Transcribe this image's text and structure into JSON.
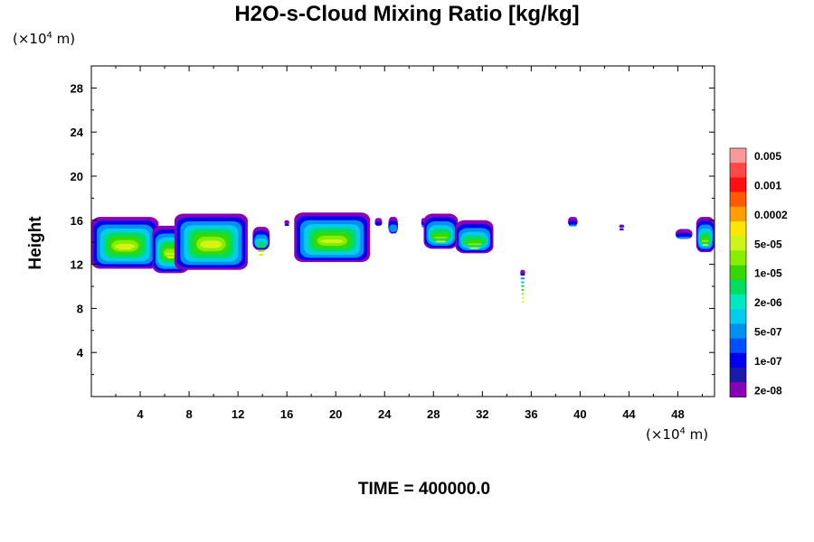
{
  "chart_data": {
    "type": "heatmap",
    "title": "H2O-s-Cloud Mixing Ratio [kg/kg]",
    "ylabel": "Height",
    "xlabel": "",
    "x_unit": {
      "prefix": "(×10",
      "exp": "4",
      "suffix": " m)"
    },
    "y_unit": {
      "prefix": "(×10",
      "exp": "4",
      "suffix": " m)"
    },
    "xlim": [
      0,
      51
    ],
    "ylim": [
      0,
      30
    ],
    "x_ticks": [
      4,
      8,
      12,
      16,
      20,
      24,
      28,
      32,
      36,
      40,
      44,
      48
    ],
    "x_tick_labels": [
      "4",
      "8",
      "12",
      "16",
      "20",
      "24",
      "28",
      "32",
      "36",
      "40",
      "44",
      "48"
    ],
    "y_ticks": [
      4,
      8,
      12,
      16,
      20,
      24,
      28
    ],
    "y_tick_labels": [
      "4",
      "8",
      "12",
      "16",
      "20",
      "24",
      "28"
    ],
    "colorbar": {
      "labels": [
        "0.005",
        "0.001",
        "0.0002",
        "5e-05",
        "1e-05",
        "2e-06",
        "5e-07",
        "1e-07",
        "2e-08"
      ],
      "colors": [
        "#f99a9a",
        "#ff4848",
        "#ff1010",
        "#ff5a00",
        "#ff9e00",
        "#ffe600",
        "#cdf51a",
        "#88ee00",
        "#35d800",
        "#00dd60",
        "#00e8c0",
        "#00ccee",
        "#0090f0",
        "#0050ff",
        "#0000ee",
        "#1a1aa8",
        "#8800b8"
      ]
    },
    "clouds": [
      {
        "x": [
          0,
          5.5
        ],
        "top": 16.3,
        "bottom": 11.6,
        "max_level": 0.0002
      },
      {
        "x": [
          5.0,
          8.0
        ],
        "top": 15.5,
        "bottom": 11.2,
        "max_level": 0.0002
      },
      {
        "x": [
          6.8,
          12.8
        ],
        "top": 16.6,
        "bottom": 11.5,
        "max_level": 0.0002
      },
      {
        "x": [
          13.2,
          14.6
        ],
        "top": 15.4,
        "bottom": 13.3,
        "max_level": 5e-05
      },
      {
        "x": [
          15.8,
          16.2
        ],
        "top": 16.0,
        "bottom": 15.6,
        "max_level": 2e-08
      },
      {
        "x": [
          16.6,
          22.8
        ],
        "top": 16.7,
        "bottom": 12.2,
        "max_level": 5e-05
      },
      {
        "x": [
          23.2,
          23.8
        ],
        "top": 16.2,
        "bottom": 15.5,
        "max_level": 2e-08
      },
      {
        "x": [
          24.3,
          25.1
        ],
        "top": 16.3,
        "bottom": 14.8,
        "max_level": 1e-07
      },
      {
        "x": [
          27.0,
          27.4
        ],
        "top": 16.2,
        "bottom": 15.5,
        "max_level": 1e-07
      },
      {
        "x": [
          27.2,
          30.0
        ],
        "top": 16.6,
        "bottom": 13.4,
        "max_level": 5e-05
      },
      {
        "x": [
          29.8,
          32.9
        ],
        "top": 16.0,
        "bottom": 13.0,
        "max_level": 5e-05
      },
      {
        "x": [
          35.1,
          35.5
        ],
        "top": 11.5,
        "bottom": 11.0,
        "max_level": 0.0002
      },
      {
        "x": [
          39.0,
          39.8
        ],
        "top": 16.3,
        "bottom": 15.5,
        "max_level": 1e-07
      },
      {
        "x": [
          43.2,
          43.6
        ],
        "top": 15.6,
        "bottom": 15.3,
        "max_level": 2e-08
      },
      {
        "x": [
          47.8,
          49.2
        ],
        "top": 15.2,
        "bottom": 14.3,
        "max_level": 1e-07
      },
      {
        "x": [
          49.5,
          51.0
        ],
        "top": 16.3,
        "bottom": 13.1,
        "max_level": 5e-05
      }
    ]
  },
  "time_label": "TIME = 400000.0"
}
